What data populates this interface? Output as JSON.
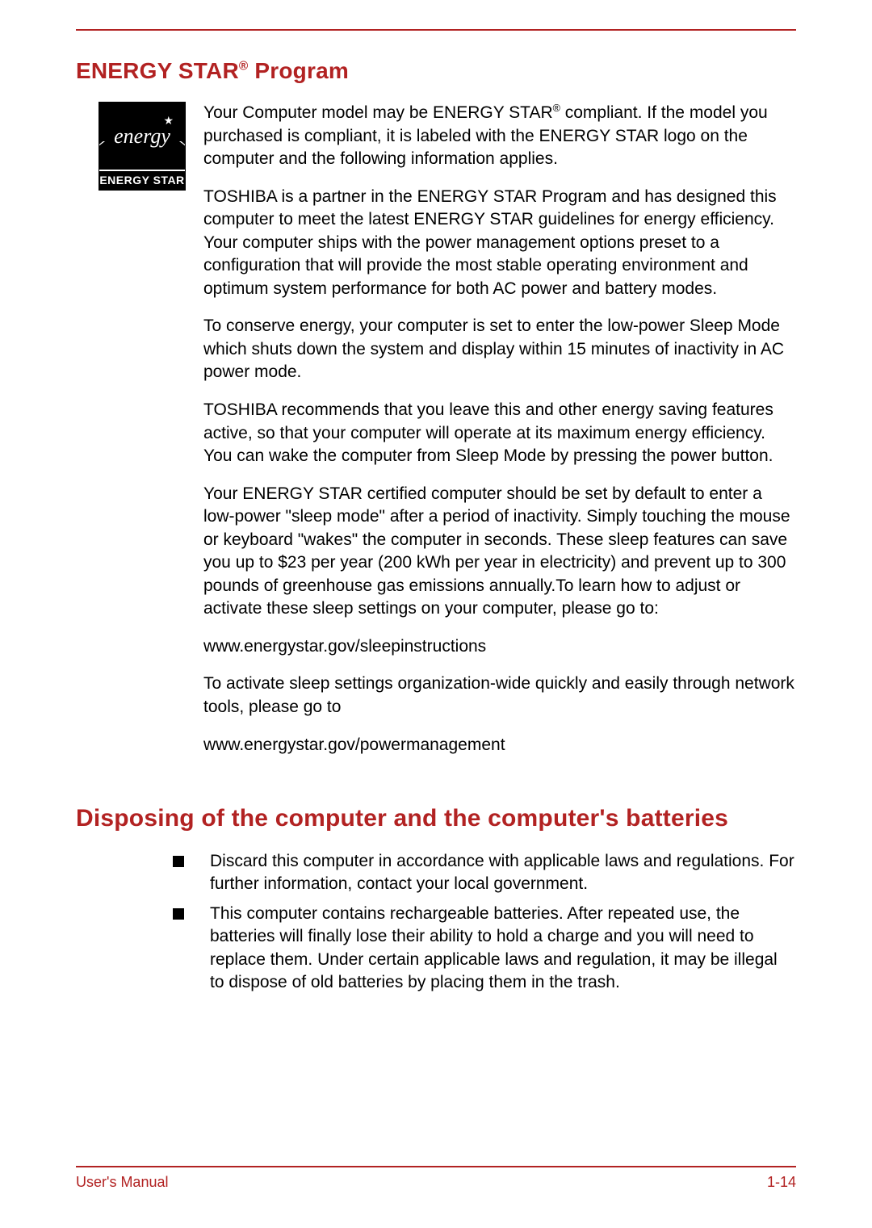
{
  "section1": {
    "heading_pre": "ENERGY STAR",
    "heading_sup": "®",
    "heading_post": " Program",
    "logo_label": "ENERGY STAR",
    "logo_script": "energy",
    "paragraphs": [
      "Your Computer model may be ENERGY STAR® compliant. If the model you purchased is compliant, it is labeled with the ENERGY STAR logo on the computer and the following information applies.",
      "TOSHIBA is a partner in the ENERGY STAR Program and has designed this computer to meet the latest ENERGY STAR guidelines for energy efficiency. Your computer ships with the power management options preset to a configuration that will provide the most stable operating environment and optimum system performance for both AC power and battery modes.",
      "To conserve energy, your computer is set to enter the low-power Sleep Mode which shuts down the system and display within 15 minutes of inactivity in AC power mode.",
      "TOSHIBA recommends that you leave this and other energy saving features active, so that your computer will operate at its maximum energy efficiency. You can wake the computer from Sleep Mode by pressing the power button.",
      "Your ENERGY STAR certified computer should be set by default to enter a low-power \"sleep mode\" after a period of inactivity. Simply touching the mouse or keyboard \"wakes\" the computer in seconds. These sleep features can save you up to $23 per year (200 kWh per year in electricity) and prevent up to 300 pounds of greenhouse gas emissions annually.To learn how to adjust or activate these sleep settings on your computer, please go to:",
      "www.energystar.gov/sleepinstructions",
      "To activate sleep settings organization-wide quickly and easily through network tools, please go to",
      "www.energystar.gov/powermanagement"
    ]
  },
  "section2": {
    "heading": "Disposing of the computer and the computer's batteries",
    "bullets": [
      "Discard this computer in accordance with applicable laws and regulations. For further information, contact your local government.",
      "This computer contains rechargeable batteries. After repeated use, the batteries will finally lose their ability to hold a charge and you will need to replace them. Under certain applicable laws and regulation, it may be illegal to dispose of old batteries by placing them in the trash."
    ]
  },
  "footer": {
    "left": "User's Manual",
    "right": "1-14"
  },
  "colors": {
    "accent": "#b22222",
    "text": "#000000",
    "background": "#ffffff"
  }
}
